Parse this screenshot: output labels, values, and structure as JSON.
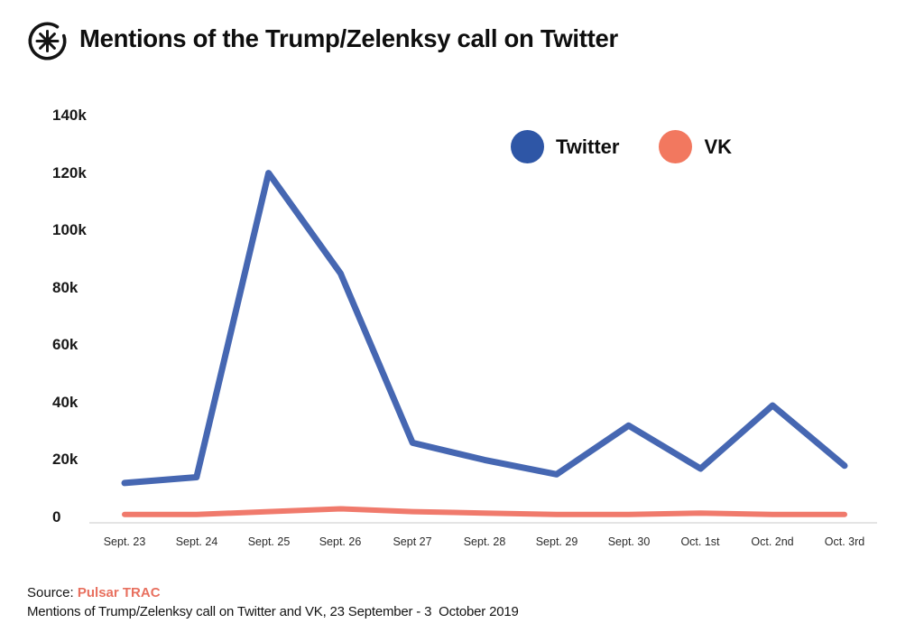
{
  "page": {
    "background": "#ffffff"
  },
  "header": {
    "title": "Mentions of the Trump/Zelenksy call on Twitter",
    "logo_icon": "pulsar-asterisk-logo"
  },
  "legend": {
    "items": [
      {
        "label": "Twitter",
        "color": "#2E56A6"
      },
      {
        "label": "VK",
        "color": "#F2785F"
      }
    ]
  },
  "chart_data": {
    "type": "line",
    "title": "Mentions of the Trump/Zelenksy call on Twitter",
    "categories": [
      "Sept. 23",
      "Sept. 24",
      "Sept. 25",
      "Sept. 26",
      "Sept 27",
      "Sept. 28",
      "Sept. 29",
      "Sept. 30",
      "Oct. 1st",
      "Oct. 2nd",
      "Oct. 3rd"
    ],
    "series": [
      {
        "name": "Twitter",
        "color": "#4667B2",
        "line_width": 7,
        "values": [
          12000,
          14000,
          120000,
          85000,
          26000,
          20000,
          15000,
          32000,
          17000,
          39000,
          18000
        ]
      },
      {
        "name": "VK",
        "color": "#F07A6C",
        "line_width": 6,
        "values": [
          1000,
          1000,
          2000,
          3000,
          2000,
          1500,
          1000,
          1000,
          1500,
          1000,
          1000
        ]
      }
    ],
    "xlabel": "",
    "ylabel": "",
    "ylim": [
      0,
      140000
    ],
    "ytick_labels": [
      "140k",
      "120k",
      "100k",
      "80k",
      "60k",
      "40k",
      "20k",
      "0"
    ],
    "grid": false,
    "legend_position": "top-right",
    "axis_line_color": "#dcdcdc"
  },
  "footer": {
    "source_label": "Source:",
    "source_link": "Pulsar TRAC",
    "source_link_color": "#E8705F",
    "caption": "Mentions of Trump/Zelenksy call on Twitter and VK, 23 September - 3  October 2019"
  }
}
